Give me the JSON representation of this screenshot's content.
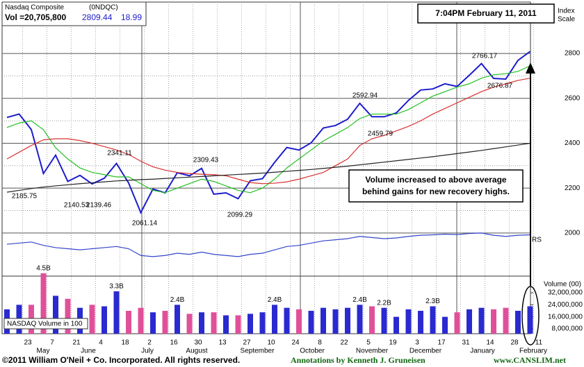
{
  "chart_data": {
    "type": "line",
    "title": "Nasdaq Composite",
    "symbol": "(0NDQC)",
    "volume_text": "Vol =20,705,800",
    "last": 2809.44,
    "change": 18.99,
    "timestamp": "7:04PM February 11, 2011",
    "axis_label": [
      "Index",
      "Scale"
    ],
    "categories": [
      null,
      "23",
      null,
      "7",
      null,
      "21",
      null,
      "4",
      null,
      "18",
      null,
      "2",
      null,
      "16",
      null,
      "30",
      null,
      "13",
      null,
      "27",
      null,
      "10",
      null,
      "24",
      null,
      "8",
      null,
      "22",
      null,
      "5",
      null,
      "19",
      null,
      "3",
      null,
      "17",
      null,
      "31",
      null,
      "14",
      null,
      "28",
      null,
      "11"
    ],
    "months": [
      "May",
      "June",
      "July",
      "August",
      "September",
      "October",
      "November",
      "December",
      "January",
      "February"
    ],
    "ylim": [
      1808,
      3029
    ],
    "yticks": [
      2000,
      2200,
      2400,
      2600,
      2800
    ],
    "grid": true,
    "series": [
      {
        "color": "#1c1ccc",
        "values": [
          2515,
          2530,
          2461,
          2265,
          2347,
          2230,
          2257,
          2219,
          2244,
          2310,
          2223,
          2091,
          2196,
          2179,
          2269,
          2255,
          2288,
          2173,
          2179,
          2153,
          2233,
          2242,
          2315,
          2381,
          2370,
          2402,
          2468,
          2479,
          2507,
          2578,
          2518,
          2518,
          2535,
          2591,
          2637,
          2642,
          2665,
          2653,
          2703,
          2755,
          2689,
          2686,
          2769,
          2809
        ]
      },
      {
        "color": "#22c022",
        "values": [
          2470,
          2490,
          2500,
          2460,
          2380,
          2330,
          2290,
          2270,
          2260,
          2250,
          2250,
          2220,
          2190,
          2180,
          2200,
          2220,
          2240,
          2230,
          2210,
          2190,
          2180,
          2200,
          2240,
          2290,
          2330,
          2370,
          2410,
          2440,
          2470,
          2510,
          2530,
          2530,
          2530,
          2550,
          2580,
          2610,
          2630,
          2650,
          2665,
          2690,
          2705,
          2710,
          2720,
          2745
        ]
      },
      {
        "color": "#d83030",
        "values": [
          2330,
          2360,
          2390,
          2415,
          2420,
          2420,
          2412,
          2400,
          2385,
          2370,
          2350,
          2320,
          2295,
          2280,
          2270,
          2265,
          2262,
          2260,
          2255,
          2240,
          2225,
          2220,
          2222,
          2228,
          2240,
          2255,
          2270,
          2300,
          2330,
          2390,
          2420,
          2435,
          2455,
          2475,
          2500,
          2530,
          2555,
          2580,
          2605,
          2630,
          2650,
          2665,
          2680,
          2690
        ]
      },
      {
        "color": "#222222",
        "values": [
          2182,
          2190,
          2198,
          2205,
          2210,
          2215,
          2220,
          2224,
          2228,
          2232,
          2235,
          2238,
          2240,
          2243,
          2246,
          2249,
          2252,
          2255,
          2258,
          2261,
          2264,
          2267,
          2271,
          2275,
          2279,
          2283,
          2288,
          2293,
          2298,
          2304,
          2310,
          2316,
          2322,
          2328,
          2334,
          2340,
          2347,
          2354,
          2361,
          2368,
          2376,
          2384,
          2392,
          2400
        ]
      },
      {
        "color": "#3344cc",
        "values": [
          1950,
          1955,
          1960,
          1945,
          1935,
          1930,
          1925,
          1930,
          1935,
          1940,
          1930,
          1900,
          1895,
          1900,
          1910,
          1905,
          1915,
          1905,
          1900,
          1895,
          1905,
          1910,
          1925,
          1940,
          1945,
          1955,
          1965,
          1970,
          1975,
          1985,
          1980,
          1975,
          1978,
          1985,
          1990,
          1992,
          1995,
          1993,
          1998,
          2000,
          1990,
          1985,
          1990,
          1992
        ]
      }
    ],
    "rs_label": "RS",
    "annotations": [
      2341.11,
      2309.43,
      2185.75,
      2140.53,
      2139.46,
      2061.14,
      2099.29,
      2592.94,
      2459.79,
      2766.17,
      2676.87
    ],
    "note": [
      "Volume increased to above average",
      "behind gains for new recovery highs."
    ],
    "volume": {
      "type": "bar",
      "label": "Volume (00)",
      "legend": "NASDAQ Volume in 100",
      "color": "#2a2ad0",
      "down_color": "#e0509a",
      "values": [
        21000000,
        24000000,
        24000000,
        45000000,
        30000000,
        28000000,
        22000000,
        24000000,
        23000000,
        33000000,
        20000000,
        22000000,
        19000000,
        20000000,
        24000000,
        18000000,
        19000000,
        19000000,
        17000000,
        17000000,
        18000000,
        19000000,
        24000000,
        22000000,
        21000000,
        20000000,
        22000000,
        21000000,
        22000000,
        24000000,
        23000000,
        22000000,
        16000000,
        21000000,
        20000000,
        23000000,
        16000000,
        19000000,
        21000000,
        22000000,
        21000000,
        22000000,
        20000000,
        23000000
      ],
      "value_labels": [
        null,
        null,
        null,
        "4.5B",
        null,
        null,
        null,
        null,
        null,
        "3.3B",
        null,
        null,
        null,
        null,
        "2.4B",
        null,
        null,
        null,
        null,
        null,
        null,
        null,
        "2.4B",
        null,
        null,
        null,
        null,
        null,
        null,
        "2.4B",
        null,
        "2.2B",
        null,
        null,
        null,
        "2.3B",
        null,
        null,
        null,
        null,
        null,
        null,
        null,
        null
      ],
      "ylim": [
        4760000,
        43100000
      ],
      "yticks": [
        {
          "value": 32000000,
          "label": "32,000,000"
        },
        {
          "value": 24000000,
          "label": "24,000,000"
        },
        {
          "value": 16000000,
          "label": "16,000,000"
        },
        {
          "value": 8000000,
          "label": "8,000,000"
        }
      ]
    },
    "footer": {
      "copyright": "©2011 William O'Neil + Co. Incorporated. All rights reserved.",
      "credit": "Annotations by Kenneth J. Gruneisen",
      "site": "www.CANSLIM.net"
    }
  }
}
